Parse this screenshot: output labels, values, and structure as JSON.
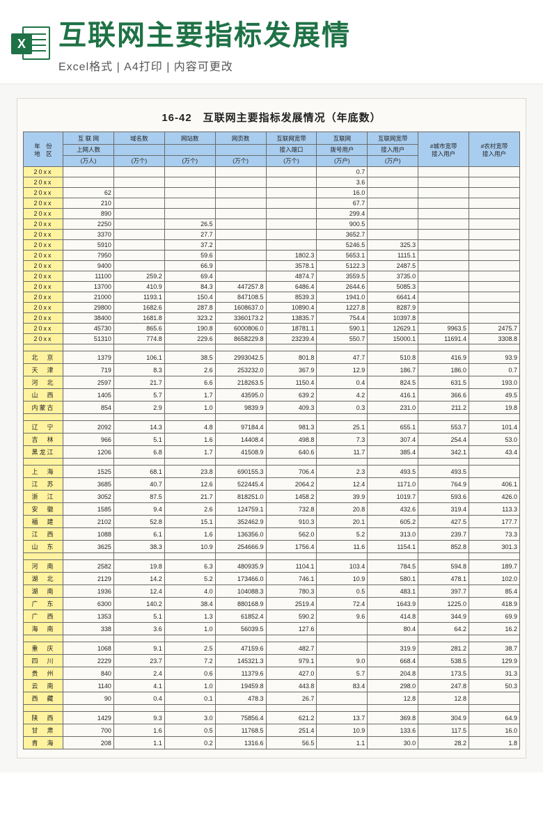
{
  "banner": {
    "title": "互联网主要指标发展情",
    "subtitle": "Excel格式 | A4打印 | 内容可更改",
    "badge": "X"
  },
  "doc": {
    "title": "16-42　互联网主要指标发展情况（年底数）"
  },
  "columns": {
    "region_l1": "年　份",
    "region_l2": "地　区",
    "c1_l1": "互 联 网",
    "c1_l2": "上网人数",
    "c1_u": "(万人)",
    "c2_l1": "域名数",
    "c2_u": "(万个)",
    "c3_l1": "网站数",
    "c3_u": "(万个)",
    "c4_l1": "网页数",
    "c4_u": "(万个)",
    "c5_l1": "互联网宽带",
    "c5_l2": "接入端口",
    "c5_u": "(万个)",
    "c6_l1": "互联网",
    "c6_l2": "拨号用户",
    "c6_u": "(万户)",
    "c7_l1": "互联网宽带",
    "c7_l2": "接入用户",
    "c7_u": "(万户)",
    "c8_l1": "#城市宽带",
    "c8_l2": "接入用户",
    "c9_l1": "#农村宽带",
    "c9_l2": "接入用户"
  },
  "rows": [
    {
      "r": "20xx",
      "v": [
        "",
        "",
        "",
        "",
        "",
        "0.7",
        "",
        "",
        ""
      ]
    },
    {
      "r": "20xx",
      "v": [
        "",
        "",
        "",
        "",
        "",
        "3.6",
        "",
        "",
        ""
      ]
    },
    {
      "r": "20xx",
      "v": [
        "62",
        "",
        "",
        "",
        "",
        "16.0",
        "",
        "",
        ""
      ]
    },
    {
      "r": "20xx",
      "v": [
        "210",
        "",
        "",
        "",
        "",
        "67.7",
        "",
        "",
        ""
      ]
    },
    {
      "r": "20xx",
      "v": [
        "890",
        "",
        "",
        "",
        "",
        "299.4",
        "",
        "",
        ""
      ]
    },
    {
      "r": "20xx",
      "v": [
        "2250",
        "",
        "26.5",
        "",
        "",
        "900.5",
        "",
        "",
        ""
      ]
    },
    {
      "r": "20xx",
      "v": [
        "3370",
        "",
        "27.7",
        "",
        "",
        "3652.7",
        "",
        "",
        ""
      ]
    },
    {
      "r": "20xx",
      "v": [
        "5910",
        "",
        "37.2",
        "",
        "",
        "5246.5",
        "325.3",
        "",
        ""
      ]
    },
    {
      "r": "20xx",
      "v": [
        "7950",
        "",
        "59.6",
        "",
        "1802.3",
        "5653.1",
        "1115.1",
        "",
        ""
      ]
    },
    {
      "r": "20xx",
      "v": [
        "9400",
        "",
        "66.9",
        "",
        "3578.1",
        "5122.3",
        "2487.5",
        "",
        ""
      ]
    },
    {
      "r": "20xx",
      "v": [
        "11100",
        "259.2",
        "69.4",
        "",
        "4874.7",
        "3559.5",
        "3735.0",
        "",
        ""
      ]
    },
    {
      "r": "20xx",
      "v": [
        "13700",
        "410.9",
        "84.3",
        "447257.8",
        "6486.4",
        "2644.6",
        "5085.3",
        "",
        ""
      ]
    },
    {
      "r": "20xx",
      "v": [
        "21000",
        "1193.1",
        "150.4",
        "847108.5",
        "8539.3",
        "1941.0",
        "6641.4",
        "",
        ""
      ]
    },
    {
      "r": "20xx",
      "v": [
        "29800",
        "1682.6",
        "287.8",
        "1608637.0",
        "10890.4",
        "1227.8",
        "8287.9",
        "",
        ""
      ]
    },
    {
      "r": "20xx",
      "v": [
        "38400",
        "1681.8",
        "323.2",
        "3360173.2",
        "13835.7",
        "754.4",
        "10397.8",
        "",
        ""
      ]
    },
    {
      "r": "20xx",
      "v": [
        "45730",
        "865.6",
        "190.8",
        "6000806.0",
        "18781.1",
        "590.1",
        "12629.1",
        "9963.5",
        "2475.7"
      ]
    },
    {
      "r": "20xx",
      "v": [
        "51310",
        "774.8",
        "229.6",
        "8658229.8",
        "23239.4",
        "550.7",
        "15000.1",
        "11691.4",
        "3308.8"
      ]
    },
    {
      "spacer": true
    },
    {
      "r": "北　京",
      "v": [
        "1379",
        "106.1",
        "38.5",
        "2993042.5",
        "801.8",
        "47.7",
        "510.8",
        "416.9",
        "93.9"
      ]
    },
    {
      "r": "天　津",
      "v": [
        "719",
        "8.3",
        "2.6",
        "253232.0",
        "367.9",
        "12.9",
        "186.7",
        "186.0",
        "0.7"
      ]
    },
    {
      "r": "河　北",
      "v": [
        "2597",
        "21.7",
        "6.6",
        "218263.5",
        "1150.4",
        "0.4",
        "824.5",
        "631.5",
        "193.0"
      ]
    },
    {
      "r": "山　西",
      "v": [
        "1405",
        "5.7",
        "1.7",
        "43595.0",
        "639.2",
        "4.2",
        "416.1",
        "366.6",
        "49.5"
      ]
    },
    {
      "r": "内蒙古",
      "v": [
        "854",
        "2.9",
        "1.0",
        "9839.9",
        "409.3",
        "0.3",
        "231.0",
        "211.2",
        "19.8"
      ]
    },
    {
      "spacer": true
    },
    {
      "r": "辽　宁",
      "v": [
        "2092",
        "14.3",
        "4.8",
        "97184.4",
        "981.3",
        "25.1",
        "655.1",
        "553.7",
        "101.4"
      ]
    },
    {
      "r": "吉　林",
      "v": [
        "966",
        "5.1",
        "1.6",
        "14408.4",
        "498.8",
        "7.3",
        "307.4",
        "254.4",
        "53.0"
      ]
    },
    {
      "r": "黑龙江",
      "v": [
        "1206",
        "6.8",
        "1.7",
        "41508.9",
        "640.6",
        "11.7",
        "385.4",
        "342.1",
        "43.4"
      ]
    },
    {
      "spacer": true
    },
    {
      "r": "上　海",
      "v": [
        "1525",
        "68.1",
        "23.8",
        "690155.3",
        "706.4",
        "2.3",
        "493.5",
        "493.5",
        ""
      ]
    },
    {
      "r": "江　苏",
      "v": [
        "3685",
        "40.7",
        "12.6",
        "522445.4",
        "2064.2",
        "12.4",
        "1171.0",
        "764.9",
        "406.1"
      ]
    },
    {
      "r": "浙　江",
      "v": [
        "3052",
        "87.5",
        "21.7",
        "818251.0",
        "1458.2",
        "39.9",
        "1019.7",
        "593.6",
        "426.0"
      ]
    },
    {
      "r": "安　徽",
      "v": [
        "1585",
        "9.4",
        "2.6",
        "124759.1",
        "732.8",
        "20.8",
        "432.6",
        "319.4",
        "113.3"
      ]
    },
    {
      "r": "福　建",
      "v": [
        "2102",
        "52.8",
        "15.1",
        "352462.9",
        "910.3",
        "20.1",
        "605.2",
        "427.5",
        "177.7"
      ]
    },
    {
      "r": "江　西",
      "v": [
        "1088",
        "6.1",
        "1.6",
        "136356.0",
        "562.0",
        "5.2",
        "313.0",
        "239.7",
        "73.3"
      ]
    },
    {
      "r": "山　东",
      "v": [
        "3625",
        "38.3",
        "10.9",
        "254666.9",
        "1756.4",
        "11.6",
        "1154.1",
        "852.8",
        "301.3"
      ]
    },
    {
      "spacer": true
    },
    {
      "r": "河　南",
      "v": [
        "2582",
        "19.8",
        "6.3",
        "480935.9",
        "1104.1",
        "103.4",
        "784.5",
        "594.8",
        "189.7"
      ]
    },
    {
      "r": "湖　北",
      "v": [
        "2129",
        "14.2",
        "5.2",
        "173466.0",
        "746.1",
        "10.9",
        "580.1",
        "478.1",
        "102.0"
      ]
    },
    {
      "r": "湖　南",
      "v": [
        "1936",
        "12.4",
        "4.0",
        "104088.3",
        "780.3",
        "0.5",
        "483.1",
        "397.7",
        "85.4"
      ]
    },
    {
      "r": "广　东",
      "v": [
        "6300",
        "140.2",
        "38.4",
        "880168.9",
        "2519.4",
        "72.4",
        "1643.9",
        "1225.0",
        "418.9"
      ]
    },
    {
      "r": "广　西",
      "v": [
        "1353",
        "5.1",
        "1.3",
        "61852.4",
        "590.2",
        "9.6",
        "414.8",
        "344.9",
        "69.9"
      ]
    },
    {
      "r": "海　南",
      "v": [
        "338",
        "3.6",
        "1.0",
        "56039.5",
        "127.6",
        "",
        "80.4",
        "64.2",
        "16.2"
      ]
    },
    {
      "spacer": true
    },
    {
      "r": "重　庆",
      "v": [
        "1068",
        "9.1",
        "2.5",
        "47159.6",
        "482.7",
        "",
        "319.9",
        "281.2",
        "38.7"
      ]
    },
    {
      "r": "四　川",
      "v": [
        "2229",
        "23.7",
        "7.2",
        "145321.3",
        "979.1",
        "9.0",
        "668.4",
        "538.5",
        "129.9"
      ]
    },
    {
      "r": "贵　州",
      "v": [
        "840",
        "2.4",
        "0.6",
        "11379.6",
        "427.0",
        "5.7",
        "204.8",
        "173.5",
        "31.3"
      ]
    },
    {
      "r": "云　南",
      "v": [
        "1140",
        "4.1",
        "1.0",
        "19459.8",
        "443.8",
        "83.4",
        "298.0",
        "247.8",
        "50.3"
      ]
    },
    {
      "r": "西　藏",
      "v": [
        "90",
        "0.4",
        "0.1",
        "478.3",
        "26.7",
        "",
        "12.8",
        "12.8",
        ""
      ]
    },
    {
      "spacer": true
    },
    {
      "r": "陕　西",
      "v": [
        "1429",
        "9.3",
        "3.0",
        "75856.4",
        "621.2",
        "13.7",
        "369.8",
        "304.9",
        "64.9"
      ]
    },
    {
      "r": "甘　肃",
      "v": [
        "700",
        "1.6",
        "0.5",
        "11768.5",
        "251.4",
        "10.9",
        "133.6",
        "117.5",
        "16.0"
      ]
    },
    {
      "r": "青　海",
      "v": [
        "208",
        "1.1",
        "0.2",
        "1316.6",
        "56.5",
        "1.1",
        "30.0",
        "28.2",
        "1.8"
      ]
    }
  ]
}
